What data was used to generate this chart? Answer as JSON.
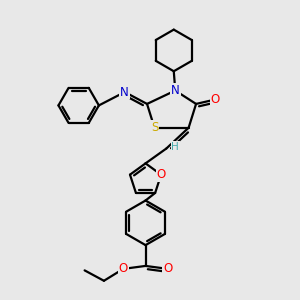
{
  "background_color": "#e8e8e8",
  "atom_colors": {
    "C": "#000000",
    "N": "#0000cc",
    "O": "#ff0000",
    "S": "#ccaa00",
    "H": "#44aaaa"
  },
  "bond_color": "#000000",
  "bond_width": 1.6,
  "font_size_atom": 8.5,
  "fig_width": 3.0,
  "fig_height": 3.0,
  "dpi": 100
}
